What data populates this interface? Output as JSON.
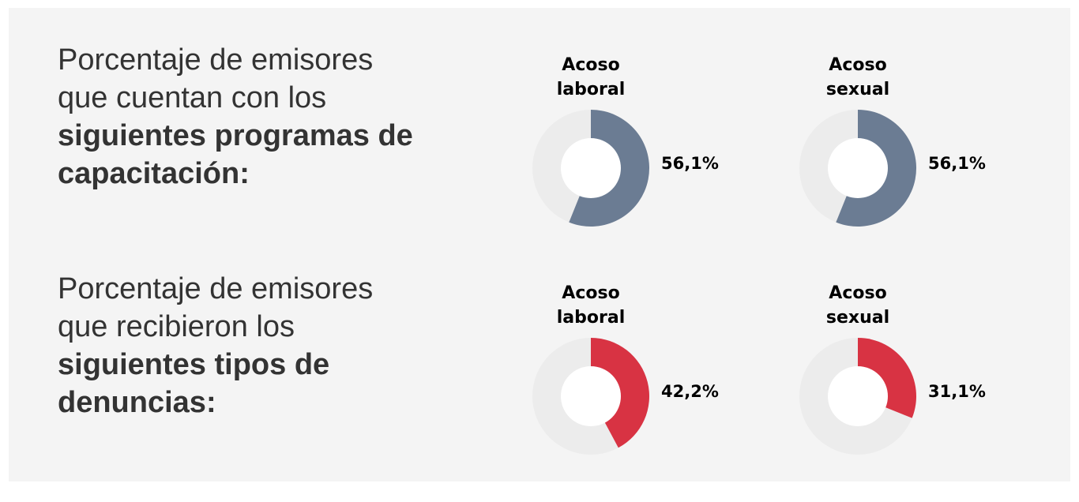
{
  "sections": [
    {
      "heading_regular": "Porcentaje de emisores que cuentan con los",
      "heading_bold": "siguientes programas de capacitación:"
    },
    {
      "heading_regular": "Porcentaje de emisores que recibieron los",
      "heading_bold": "siguientes tipos de denuncias:"
    }
  ],
  "chart_data": [
    {
      "type": "pie",
      "style": "donut",
      "title": "Acoso laboral",
      "value": 56.1,
      "value_label": "56,1%",
      "fill_color": "#6b7c93",
      "track_color": "#ececec"
    },
    {
      "type": "pie",
      "style": "donut",
      "title": "Acoso sexual",
      "value": 56.1,
      "value_label": "56,1%",
      "fill_color": "#6b7c93",
      "track_color": "#ececec"
    },
    {
      "type": "pie",
      "style": "donut",
      "title": "Acoso laboral",
      "value": 42.2,
      "value_label": "42,2%",
      "fill_color": "#d83343",
      "track_color": "#ececec"
    },
    {
      "type": "pie",
      "style": "donut",
      "title": "Acoso sexual",
      "value": 31.1,
      "value_label": "31,1%",
      "fill_color": "#d83343",
      "track_color": "#ececec"
    }
  ]
}
